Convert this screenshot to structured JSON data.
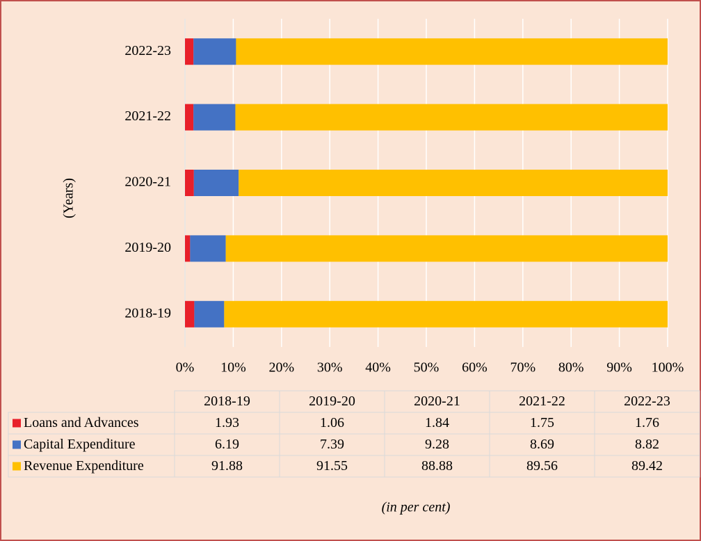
{
  "chart_data": {
    "type": "bar",
    "orientation": "horizontal",
    "stacked": true,
    "y_label": "(Years)",
    "note": "(in per cent)",
    "categories": [
      "2018-19",
      "2019-20",
      "2020-21",
      "2021-22",
      "2022-23"
    ],
    "series": [
      {
        "name": "Loans and Advances",
        "color": "#e8202a",
        "values": [
          1.93,
          1.06,
          1.84,
          1.75,
          1.76
        ]
      },
      {
        "name": "Capital Expenditure",
        "color": "#4472c4",
        "values": [
          6.19,
          7.39,
          9.28,
          8.69,
          8.82
        ]
      },
      {
        "name": "Revenue Expenditure",
        "color": "#ffc000",
        "values": [
          91.88,
          91.55,
          88.88,
          89.56,
          89.42
        ]
      }
    ],
    "xlim": [
      0,
      100
    ],
    "xticks": [
      {
        "value": 0,
        "label": "0%"
      },
      {
        "value": 10,
        "label": "10%"
      },
      {
        "value": 20,
        "label": "20%"
      },
      {
        "value": 30,
        "label": "30%"
      },
      {
        "value": 40,
        "label": "40%"
      },
      {
        "value": 50,
        "label": "50%"
      },
      {
        "value": 60,
        "label": "60%"
      },
      {
        "value": 70,
        "label": "70%"
      },
      {
        "value": 80,
        "label": "80%"
      },
      {
        "value": 90,
        "label": "90%"
      },
      {
        "value": 100,
        "label": "100%"
      }
    ],
    "grid": true,
    "background": "#fbe5d6"
  }
}
